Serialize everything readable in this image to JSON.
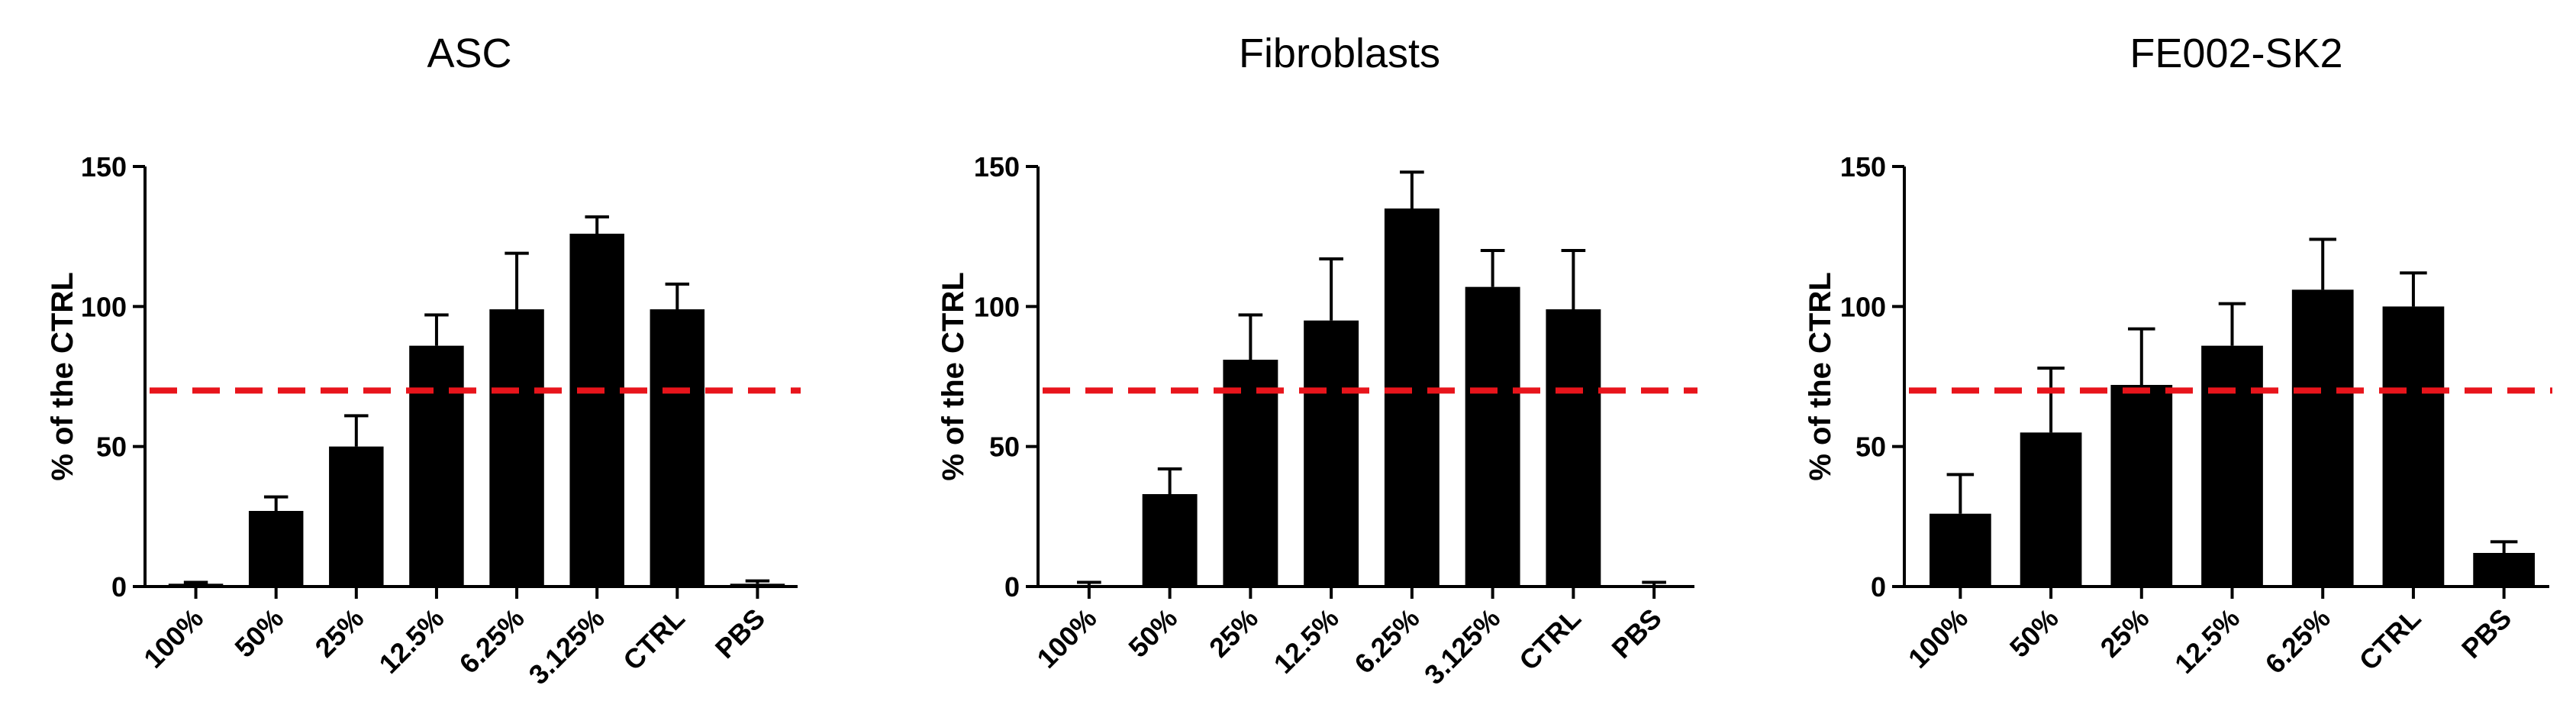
{
  "chart_data": [
    {
      "type": "bar",
      "title": "ASC",
      "ylabel": "% of the CTRL",
      "xlabel": "",
      "ylim": [
        0,
        150
      ],
      "yticks": [
        0,
        50,
        100,
        150
      ],
      "categories": [
        "100%",
        "50%",
        "25%",
        "12.5%",
        "6.25%",
        "3.125%",
        "CTRL",
        "PBS"
      ],
      "values": [
        1,
        27,
        50,
        86,
        99,
        126,
        99,
        1
      ],
      "errors": [
        0.5,
        5,
        11,
        11,
        20,
        6,
        9,
        1
      ],
      "threshold": 70,
      "threshold_color": "#e8141b",
      "bar_color": "#000000",
      "grid": false
    },
    {
      "type": "bar",
      "title": "Fibroblasts",
      "ylabel": "% of the CTRL",
      "xlabel": "",
      "ylim": [
        0,
        150
      ],
      "yticks": [
        0,
        50,
        100,
        150
      ],
      "categories": [
        "100%",
        "50%",
        "25%",
        "12.5%",
        "6.25%",
        "3.125%",
        "CTRL",
        "PBS"
      ],
      "values": [
        0.5,
        33,
        81,
        95,
        135,
        107,
        99,
        0.5
      ],
      "errors": [
        1,
        9,
        16,
        22,
        13,
        13,
        21,
        1
      ],
      "threshold": 70,
      "threshold_color": "#e8141b",
      "bar_color": "#000000",
      "grid": false
    },
    {
      "type": "bar",
      "title": "FE002-SK2",
      "ylabel": "% of the CTRL",
      "xlabel": "",
      "ylim": [
        0,
        150
      ],
      "yticks": [
        0,
        50,
        100,
        150
      ],
      "categories": [
        "100%",
        "50%",
        "25%",
        "12.5%",
        "6.25%",
        "CTRL",
        "PBS"
      ],
      "values": [
        26,
        55,
        72,
        86,
        106,
        100,
        12
      ],
      "errors": [
        14,
        23,
        20,
        15,
        18,
        12,
        4
      ],
      "threshold": 70,
      "threshold_color": "#e8141b",
      "bar_color": "#000000",
      "grid": false
    }
  ]
}
